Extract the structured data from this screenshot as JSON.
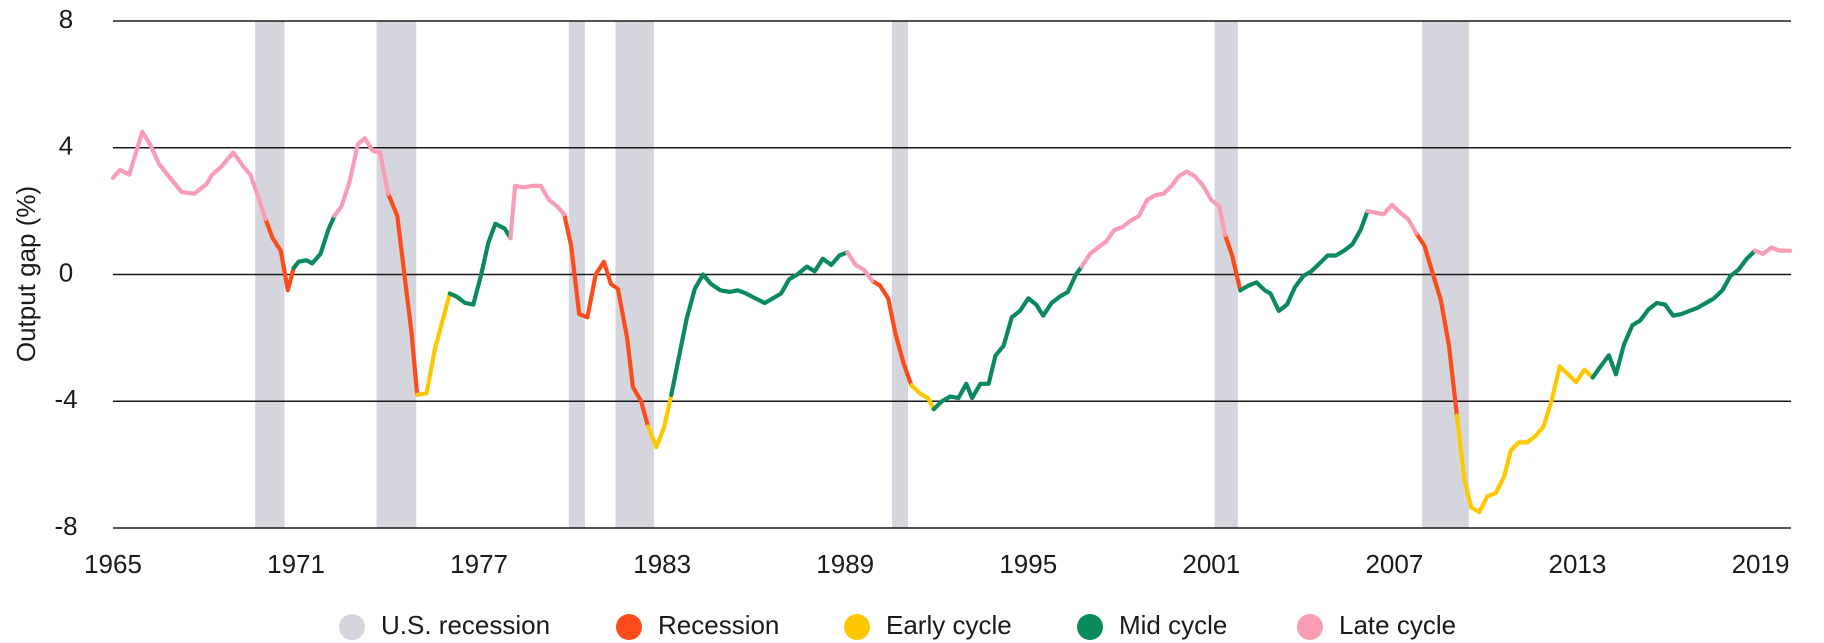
{
  "chart_data": {
    "type": "line",
    "y_label": "Output gap (%)",
    "xlim": [
      1965,
      2020
    ],
    "xticks": [
      1965,
      1971,
      1977,
      1983,
      1989,
      1995,
      2001,
      2007,
      2013,
      2019
    ],
    "ylim": [
      -8,
      8
    ],
    "yticks": [
      -8,
      -4,
      0,
      4,
      8
    ],
    "grid": true,
    "recessions": {
      "name": "U.S. recession",
      "color": "#d5d5de",
      "periods": [
        [
          1969.66,
          1970.62
        ],
        [
          1973.64,
          1974.94
        ],
        [
          1979.94,
          1980.47
        ],
        [
          1981.47,
          1982.73
        ],
        [
          1990.53,
          1991.06
        ],
        [
          2001.11,
          2001.87
        ],
        [
          2007.91,
          2009.44
        ]
      ]
    },
    "series": [
      {
        "name": "Recession",
        "color": "#fc4c1c",
        "x": [
          1970.0,
          1970.23,
          1970.5,
          1970.73,
          1970.92,
          null,
          1974.02,
          1974.32,
          1974.55,
          1974.78,
          1974.97,
          null,
          1979.79,
          1980.02,
          1980.28,
          1980.55,
          1980.82,
          1981.09,
          1981.32,
          1981.55,
          1981.85,
          1982.04,
          1982.31,
          1982.54,
          null,
          1989.88,
          1990.14,
          1990.41,
          1990.64,
          1990.91,
          1991.17,
          null,
          2001.45,
          2001.68,
          2001.95,
          null,
          2007.72,
          2007.99,
          2008.25,
          2008.52,
          2008.79,
          2009.05
        ],
        "values": [
          1.75,
          1.15,
          0.75,
          -0.5,
          0.2,
          null,
          2.55,
          1.85,
          0.0,
          -1.8,
          -3.8,
          null,
          1.9,
          0.9,
          -1.25,
          -1.35,
          0.0,
          0.4,
          -0.3,
          -0.45,
          -2.0,
          -3.55,
          -4.0,
          -4.8,
          null,
          -0.2,
          -0.35,
          -0.75,
          -1.85,
          -2.8,
          -3.5,
          null,
          1.25,
          0.6,
          -0.5,
          null,
          1.3,
          0.9,
          0.05,
          -0.8,
          -2.25,
          -4.45
        ]
      },
      {
        "name": "Early cycle",
        "color": "#fcc800",
        "x": [
          1974.97,
          1975.28,
          1975.55,
          1976.04,
          null,
          1982.54,
          1982.81,
          1983.07,
          1983.3,
          null,
          1991.17,
          1991.44,
          1991.71,
          1991.9,
          null,
          2009.05,
          2009.29,
          2009.52,
          2009.78,
          2010.05,
          2010.32,
          2010.59,
          2010.82,
          2011.08,
          2011.35,
          2011.62,
          2011.89,
          2012.16,
          2012.42,
          2012.69,
          2012.96,
          2013.23,
          2013.5
        ],
        "values": [
          -3.8,
          -3.75,
          -2.35,
          -0.6,
          null,
          -4.8,
          -5.45,
          -4.8,
          -3.8,
          null,
          -3.5,
          -3.75,
          -3.9,
          -4.25,
          null,
          -4.45,
          -6.45,
          -7.35,
          -7.5,
          -7.0,
          -6.9,
          -6.4,
          -5.55,
          -5.3,
          -5.3,
          -5.1,
          -4.8,
          -3.95,
          -2.9,
          -3.15,
          -3.4,
          -3.0,
          -3.25
        ]
      },
      {
        "name": "Mid cycle",
        "color": "#0a8a5a",
        "x": [
          1970.92,
          1971.08,
          1971.34,
          1971.53,
          1971.8,
          1972.07,
          1972.26,
          null,
          1976.04,
          1976.27,
          1976.54,
          1976.81,
          1977.07,
          1977.3,
          1977.53,
          1977.84,
          1978.03,
          null,
          1983.3,
          1983.53,
          1983.8,
          1984.07,
          1984.34,
          1984.6,
          1984.91,
          1985.21,
          1985.48,
          1985.75,
          1986.05,
          1986.36,
          1986.63,
          1986.9,
          1987.16,
          1987.43,
          1987.74,
          1988.0,
          1988.27,
          1988.54,
          1988.81,
          1989.07,
          null,
          1991.9,
          1992.17,
          1992.44,
          1992.71,
          1992.97,
          1993.16,
          1993.43,
          1993.7,
          1993.93,
          1994.19,
          1994.46,
          1994.73,
          1995.0,
          1995.26,
          1995.49,
          1995.76,
          1996.03,
          1996.3,
          1996.56,
          1996.75,
          null,
          2001.95,
          2002.22,
          2002.48,
          2002.75,
          2002.94,
          2003.21,
          2003.48,
          2003.74,
          2004.01,
          2004.28,
          2004.55,
          2004.81,
          2005.08,
          2005.35,
          2005.62,
          2005.89,
          2006.12,
          null,
          2013.5,
          2013.76,
          2014.03,
          2014.26,
          2014.53,
          2014.8,
          2015.06,
          2015.33,
          2015.6,
          2015.87,
          2016.14,
          2016.4,
          2016.67,
          2016.94,
          2017.21,
          2017.48,
          2017.75,
          2018.01,
          2018.28,
          2018.55,
          2018.82
        ],
        "values": [
          0.2,
          0.4,
          0.45,
          0.35,
          0.65,
          1.45,
          1.85,
          null,
          -0.6,
          -0.7,
          -0.9,
          -0.95,
          0.0,
          1.0,
          1.6,
          1.45,
          1.15,
          null,
          -3.8,
          -2.7,
          -1.4,
          -0.45,
          0.0,
          -0.3,
          -0.5,
          -0.55,
          -0.5,
          -0.6,
          -0.75,
          -0.9,
          -0.75,
          -0.6,
          -0.15,
          0.0,
          0.25,
          0.1,
          0.5,
          0.3,
          0.6,
          0.7,
          null,
          -4.25,
          -4.0,
          -3.85,
          -3.9,
          -3.45,
          -3.9,
          -3.45,
          -3.45,
          -2.55,
          -2.25,
          -1.35,
          -1.15,
          -0.75,
          -0.95,
          -1.3,
          -0.9,
          -0.7,
          -0.55,
          0.0,
          0.25,
          null,
          -0.5,
          -0.35,
          -0.25,
          -0.5,
          -0.6,
          -1.15,
          -0.95,
          -0.4,
          -0.05,
          0.1,
          0.35,
          0.6,
          0.6,
          0.75,
          0.95,
          1.4,
          2.0,
          null,
          -3.25,
          -2.9,
          -2.55,
          -3.15,
          -2.2,
          -1.6,
          -1.45,
          -1.1,
          -0.9,
          -0.95,
          -1.3,
          -1.25,
          -1.15,
          -1.05,
          -0.9,
          -0.75,
          -0.5,
          -0.05,
          0.15,
          0.5,
          0.75
        ]
      },
      {
        "name": "Late cycle",
        "color": "#f99cb4",
        "x": [
          1965.0,
          1965.23,
          1965.53,
          1965.96,
          1966.22,
          1966.5,
          1966.83,
          1967.25,
          1967.67,
          1968.06,
          1968.25,
          1968.55,
          1968.94,
          1969.28,
          1969.5,
          1969.78,
          1970.0,
          null,
          1972.26,
          1972.49,
          1972.76,
          1973.02,
          1973.25,
          1973.52,
          1973.75,
          1974.02,
          null,
          1978.03,
          1978.18,
          1978.45,
          1978.76,
          1979.02,
          1979.29,
          1979.56,
          1979.79,
          null,
          1989.07,
          1989.34,
          1989.61,
          1989.88,
          null,
          1996.75,
          1997.02,
          1997.29,
          1997.56,
          1997.82,
          1998.09,
          1998.36,
          1998.63,
          1998.89,
          1999.16,
          1999.43,
          1999.7,
          1999.93,
          2000.19,
          2000.46,
          2000.73,
          2001.0,
          2001.26,
          2001.45,
          null,
          2006.12,
          2006.38,
          2006.65,
          2006.92,
          2007.19,
          2007.45,
          2007.72,
          null,
          2018.82,
          2019.09,
          2019.35,
          2019.62,
          2019.97
        ],
        "values": [
          3.05,
          3.3,
          3.15,
          4.5,
          4.1,
          3.5,
          3.1,
          2.6,
          2.55,
          2.85,
          3.15,
          3.4,
          3.85,
          3.4,
          3.15,
          2.4,
          1.75,
          null,
          1.85,
          2.15,
          2.95,
          4.1,
          4.3,
          3.9,
          3.85,
          2.55,
          null,
          1.15,
          2.8,
          2.75,
          2.8,
          2.8,
          2.35,
          2.15,
          1.9,
          null,
          0.7,
          0.3,
          0.15,
          -0.2,
          null,
          0.25,
          0.65,
          0.85,
          1.05,
          1.4,
          1.5,
          1.7,
          1.85,
          2.35,
          2.5,
          2.55,
          2.8,
          3.1,
          3.25,
          3.1,
          2.8,
          2.35,
          2.15,
          1.25,
          null,
          2.0,
          1.95,
          1.9,
          2.2,
          1.95,
          1.75,
          1.3,
          null,
          0.75,
          0.65,
          0.85,
          0.75,
          0.75
        ]
      }
    ]
  }
}
